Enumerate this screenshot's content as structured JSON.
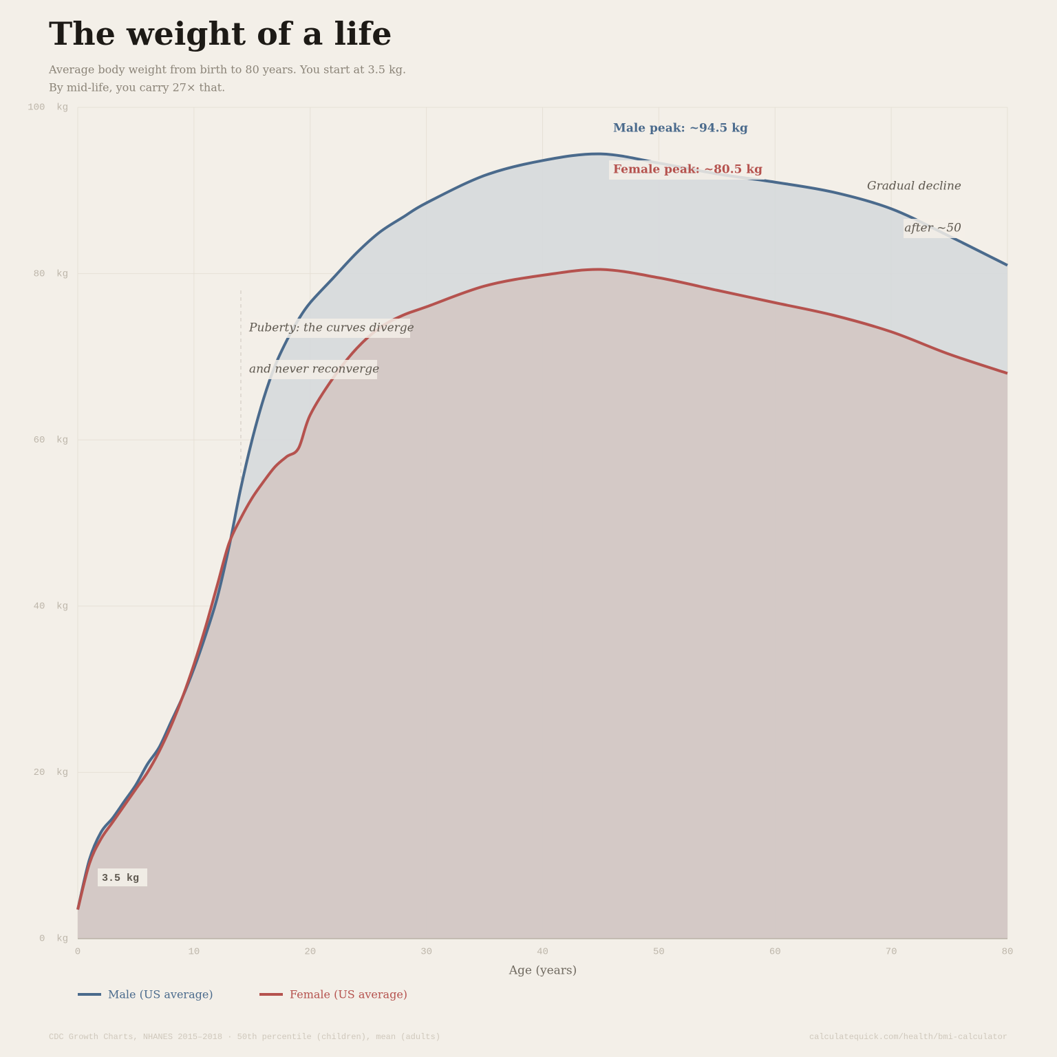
{
  "chart_data": {
    "type": "line",
    "title": "The weight of a life",
    "subtitle": [
      "Average body weight from birth to 80 years. You start at 3.5 kg.",
      "By mid-life, you carry 27× that."
    ],
    "x_label": "Age (years)",
    "x": [
      0,
      1,
      2,
      3,
      4,
      5,
      6,
      7,
      8,
      9,
      10,
      11,
      12,
      13,
      14,
      15,
      16,
      17,
      18,
      19,
      20,
      22,
      24,
      26,
      28,
      30,
      35,
      40,
      45,
      50,
      55,
      60,
      65,
      70,
      75,
      80
    ],
    "series": [
      {
        "name": "Male (US average)",
        "color": "#4a6a8c",
        "fill": "#d6d9db",
        "values": [
          3.5,
          9.5,
          12.8,
          14.5,
          16.5,
          18.5,
          21,
          23,
          26,
          29,
          32.5,
          36.5,
          41,
          47,
          54,
          60,
          65,
          69,
          72,
          74.5,
          76.5,
          79.5,
          82.5,
          85,
          86.8,
          88.5,
          91.8,
          93.6,
          94.4,
          93.3,
          92,
          91,
          89.8,
          87.8,
          84.5,
          81
        ]
      },
      {
        "name": "Female (US average)",
        "color": "#b5524e",
        "fill": "#d3c6c3",
        "values": [
          3.5,
          9,
          12,
          14,
          16,
          18,
          20,
          22.5,
          25.5,
          29,
          33,
          37.5,
          42.5,
          47.5,
          50.5,
          53,
          55,
          56.8,
          58,
          59,
          63,
          67.5,
          71,
          73.5,
          75,
          76,
          78.5,
          79.8,
          80.5,
          79.5,
          78,
          76.5,
          75,
          73,
          70.3,
          68
        ]
      }
    ],
    "xlim": [
      0,
      80
    ],
    "xticks": [
      0,
      10,
      20,
      30,
      40,
      50,
      60,
      70,
      80
    ],
    "ylim": [
      0,
      100
    ],
    "yticks": [
      {
        "value": 0,
        "label": "0  kg"
      },
      {
        "value": 20,
        "label": "20  kg"
      },
      {
        "value": 40,
        "label": "40  kg"
      },
      {
        "value": 60,
        "label": "60  kg"
      },
      {
        "value": 80,
        "label": "80  kg"
      },
      {
        "value": 100,
        "label": "100  kg"
      }
    ],
    "grid": true,
    "annotations": {
      "male_peak": "Male peak: ~94.5 kg",
      "female_peak": "Female peak: ~80.5 kg",
      "decline": [
        "Gradual decline",
        "after ~50"
      ],
      "puberty": [
        "Puberty: the curves diverge",
        "and never reconverge"
      ],
      "start": "3.5 kg"
    },
    "footer": {
      "source": "CDC Growth Charts, NHANES 2015–2018  ·  50th percentile (children), mean (adults)",
      "url": "calculatequick.com/health/bmi-calculator"
    }
  }
}
